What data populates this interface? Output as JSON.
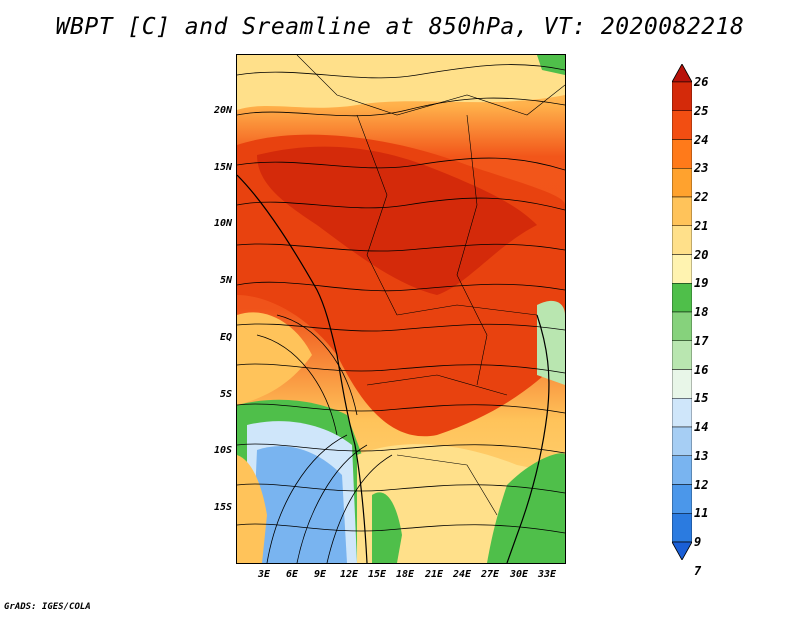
{
  "title": "WBPT [C] and Sreamline at 850hPa, VT: 2020082218",
  "credit": "GrADS: IGES/COLA",
  "map": {
    "lat_labels": [
      "20N",
      "15N",
      "10N",
      "5N",
      "EQ",
      "5S",
      "10S",
      "15S"
    ],
    "lon_labels": [
      "3E",
      "6E",
      "9E",
      "12E",
      "15E",
      "18E",
      "21E",
      "24E",
      "27E",
      "30E",
      "33E"
    ]
  },
  "colorbar": {
    "labels": [
      "7",
      "9",
      "11",
      "12",
      "13",
      "14",
      "15",
      "16",
      "17",
      "18",
      "19",
      "20",
      "21",
      "22",
      "23",
      "24",
      "25",
      "26"
    ],
    "colors": [
      "#1a5fd6",
      "#2b7be0",
      "#4b97ea",
      "#79b4f0",
      "#a6cef4",
      "#cfe6fa",
      "#e8f6e8",
      "#b9e6b0",
      "#86d27c",
      "#4fbf4a",
      "#fff3b0",
      "#ffe08a",
      "#ffc35a",
      "#ffa22e",
      "#ff7a1a",
      "#f24e12",
      "#d42a0a",
      "#b8120a"
    ]
  }
}
